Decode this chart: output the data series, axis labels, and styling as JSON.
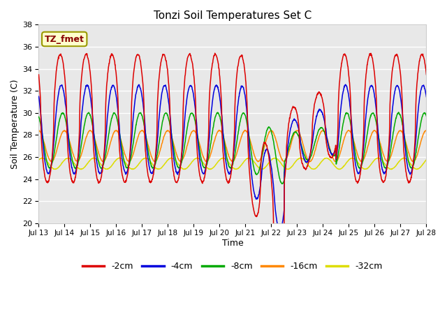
{
  "title": "Tonzi Soil Temperatures Set C",
  "xlabel": "Time",
  "ylabel": "Soil Temperature (C)",
  "ylim": [
    20,
    38
  ],
  "yticks": [
    20,
    22,
    24,
    26,
    28,
    30,
    32,
    34,
    36,
    38
  ],
  "fig_bg": "#ffffff",
  "plot_bg": "#e8e8e8",
  "grid_color": "#ffffff",
  "series_colors": [
    "#dd0000",
    "#0000dd",
    "#00aa00",
    "#ff8800",
    "#dddd00"
  ],
  "legend_labels": [
    "-2cm",
    "-4cm",
    "-8cm",
    "-16cm",
    "-32cm"
  ],
  "annotation_text": "TZ_fmet",
  "annotation_fg": "#880000",
  "annotation_bg": "#ffffcc",
  "annotation_edge": "#999900",
  "day_labels": [
    "Jul 13",
    "Jul 14",
    "Jul 15",
    "Jul 16",
    "Jul 17",
    "Jul 18",
    "Jul 19",
    "Jul 20",
    "Jul 21",
    "Jul 22",
    "Jul 23",
    "Jul 24",
    "Jul 25",
    "Jul 26",
    "Jul 27",
    "Jul 28"
  ],
  "total_days": 15,
  "n_points": 1440
}
